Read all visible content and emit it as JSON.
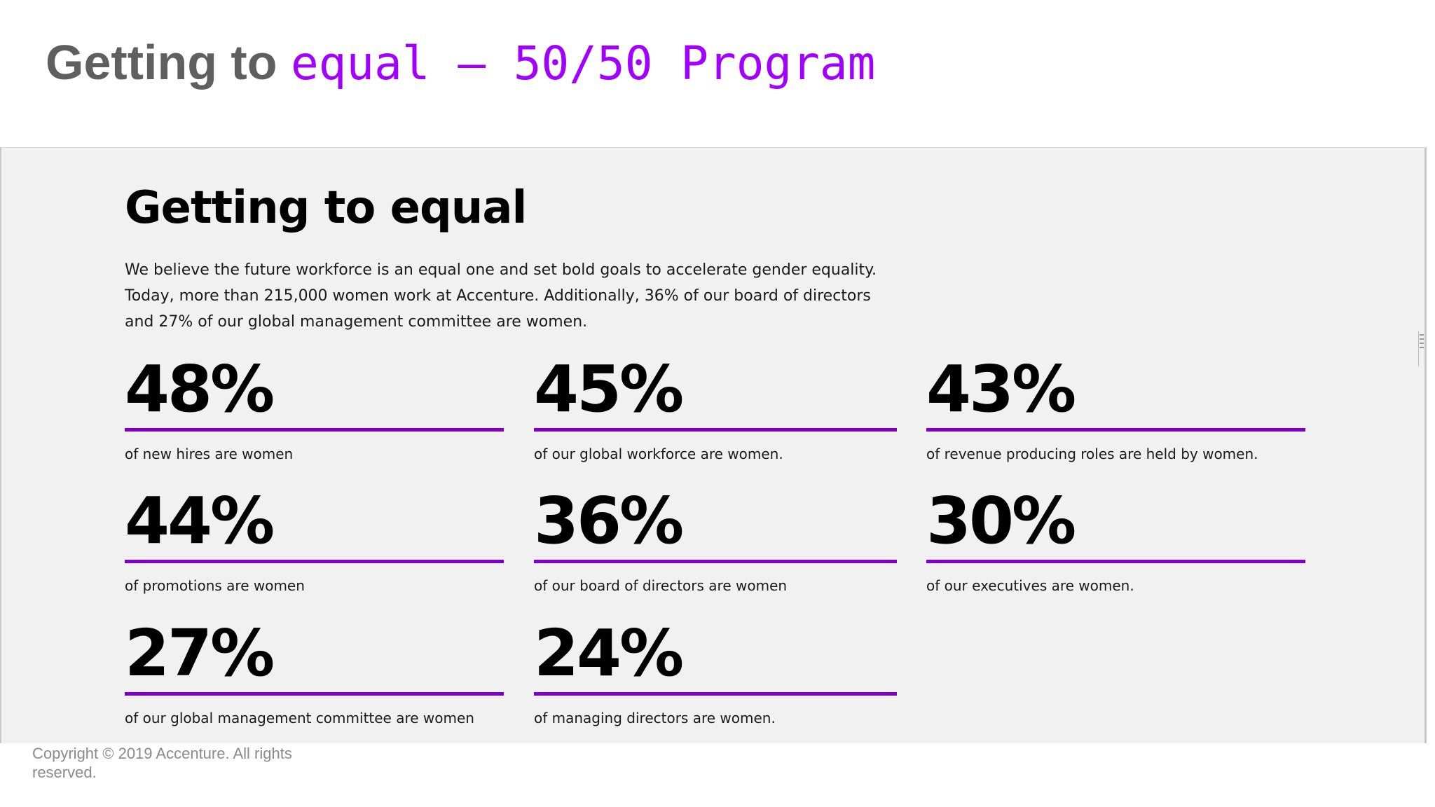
{
  "slide": {
    "title_part1": "Getting to ",
    "title_part2": "equal – 50/50 Program",
    "title_color": "#5f5f5f",
    "accent_color": "#a100ff"
  },
  "panel": {
    "heading": "Getting to equal",
    "intro": "We believe the future workforce is an equal one and set bold goals to accelerate gender equality. Today, more than 215,000 women work at Accenture. Additionally, 36% of our board of directors and 27% of our global management committee are women.",
    "bar_color": "#7d00c8",
    "stats": [
      {
        "value": "48%",
        "label": "of new hires are women"
      },
      {
        "value": "45%",
        "label": "of our global workforce are women."
      },
      {
        "value": "43%",
        "label": "of revenue producing roles are held by women."
      },
      {
        "value": "44%",
        "label": "of promotions are women"
      },
      {
        "value": "36%",
        "label": "of our board of directors are women"
      },
      {
        "value": "30%",
        "label": "of our executives are women."
      },
      {
        "value": "27%",
        "label": "of our global management committee are women"
      },
      {
        "value": "24%",
        "label": "of managing directors are women."
      }
    ]
  },
  "footer": {
    "copyright": "Copyright © 2019 Accenture. All rights reserved."
  }
}
